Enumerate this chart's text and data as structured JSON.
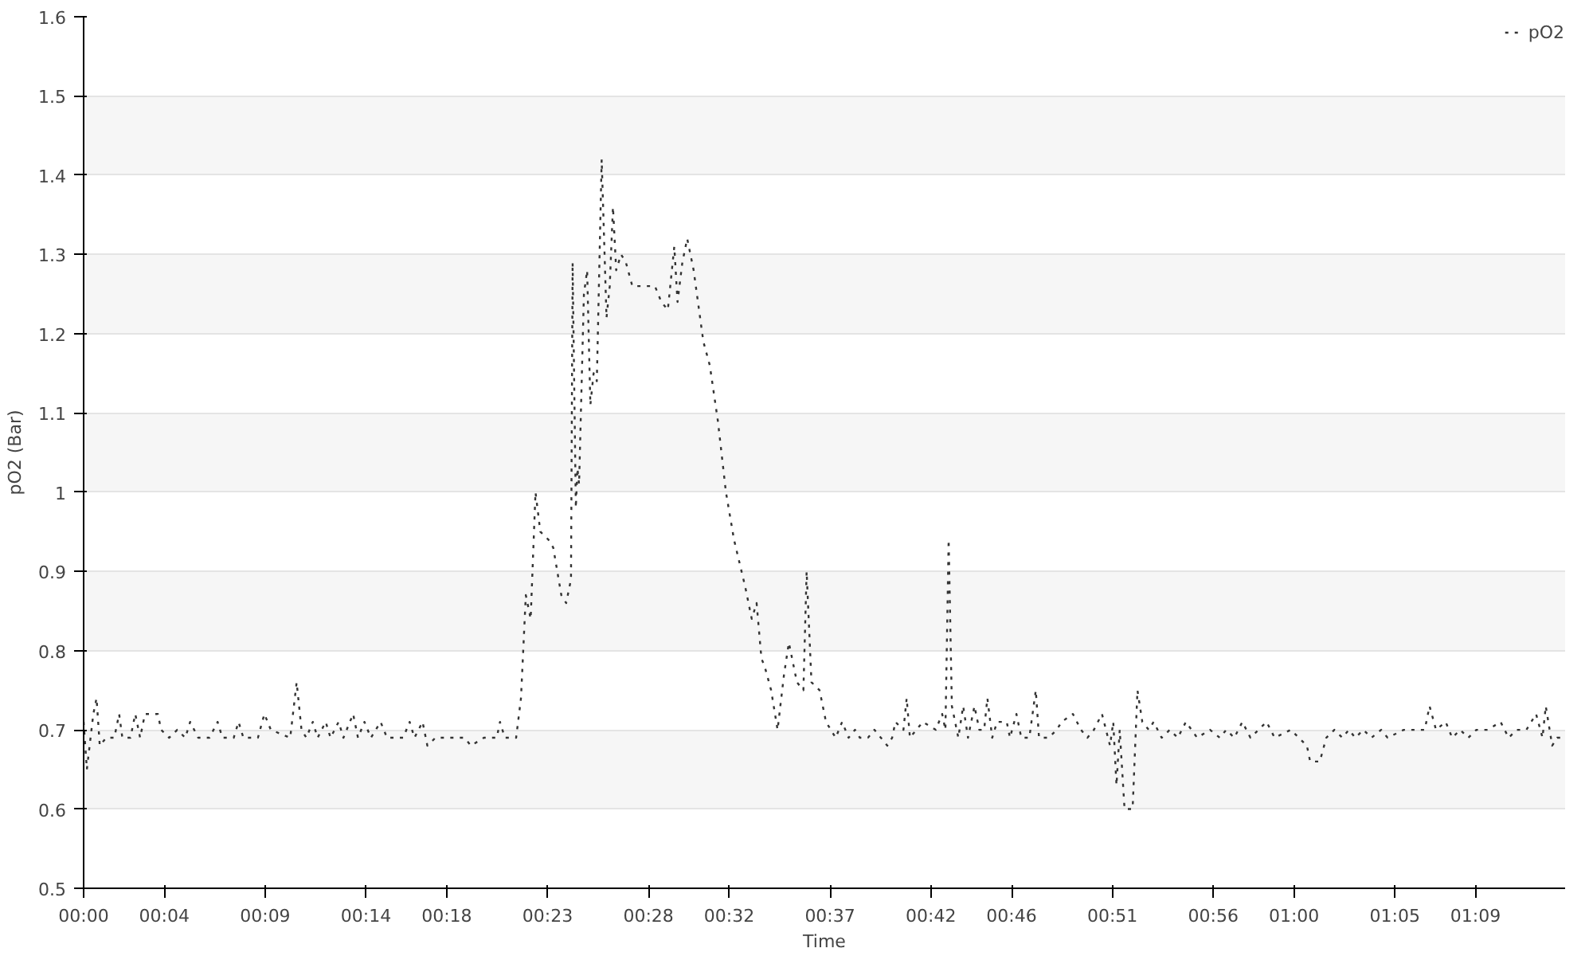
{
  "chart_data": {
    "type": "line",
    "xlabel": "Time",
    "ylabel": "pO2 (Bar)",
    "xlim": [
      0,
      73.44
    ],
    "ylim": [
      0.5,
      1.6
    ],
    "xticks": [
      {
        "value": 0,
        "label": "00:00"
      },
      {
        "value": 4,
        "label": "00:04"
      },
      {
        "value": 9,
        "label": "00:09"
      },
      {
        "value": 14,
        "label": "00:14"
      },
      {
        "value": 18,
        "label": "00:18"
      },
      {
        "value": 23,
        "label": "00:23"
      },
      {
        "value": 28,
        "label": "00:28"
      },
      {
        "value": 32,
        "label": "00:32"
      },
      {
        "value": 37,
        "label": "00:37"
      },
      {
        "value": 42,
        "label": "00:42"
      },
      {
        "value": 46,
        "label": "00:46"
      },
      {
        "value": 51,
        "label": "00:51"
      },
      {
        "value": 56,
        "label": "00:56"
      },
      {
        "value": 60,
        "label": "01:00"
      },
      {
        "value": 65,
        "label": "01:05"
      },
      {
        "value": 69,
        "label": "01:09"
      }
    ],
    "yticks": [
      0.5,
      0.6,
      0.7,
      0.8,
      0.9,
      1,
      1.1,
      1.2,
      1.3,
      1.4,
      1.5,
      1.6
    ],
    "grid": "y",
    "legend": "top right",
    "line_style": "dotted",
    "marker": "none",
    "x": [
      0,
      0.16,
      0.48,
      0.64,
      0.8,
      1.12,
      1.52,
      1.76,
      1.92,
      2.32,
      2.56,
      2.8,
      3.04,
      3.68,
      3.84,
      4.24,
      4.64,
      5.04,
      5.28,
      5.68,
      6.24,
      6.64,
      6.88,
      7.44,
      7.68,
      7.92,
      8.64,
      8.96,
      9.28,
      10.24,
      10.56,
      10.8,
      11.04,
      11.36,
      11.6,
      12.0,
      12.24,
      12.64,
      12.88,
      13.36,
      13.6,
      13.92,
      14.24,
      14.72,
      15.04,
      15.84,
      16.16,
      16.4,
      16.8,
      17.04,
      17.44,
      18.24,
      18.88,
      19.2,
      19.84,
      20.48,
      20.64,
      20.88,
      21.44,
      21.68,
      21.92,
      22.16,
      22.4,
      22.64,
      23.04,
      23.28,
      23.68,
      23.92,
      24.16,
      24.24,
      24.4,
      24.48,
      24.56,
      24.8,
      24.96,
      25.12,
      25.28,
      25.44,
      25.68,
      25.92,
      26.08,
      26.24,
      26.4,
      26.64,
      26.88,
      27.2,
      27.84,
      28.32,
      28.64,
      28.96,
      29.28,
      29.44,
      29.68,
      29.92,
      30.24,
      30.72,
      31.04,
      31.44,
      31.84,
      32.24,
      32.8,
      33.12,
      33.36,
      33.6,
      33.76,
      34.08,
      34.4,
      34.72,
      34.96,
      35.36,
      35.68,
      35.84,
      36.08,
      36.48,
      36.8,
      37.04,
      37.28,
      37.6,
      37.92,
      38.24,
      38.48,
      38.88,
      39.2,
      39.52,
      39.84,
      40.08,
      40.24,
      40.64,
      40.8,
      40.96,
      41.28,
      41.6,
      42.24,
      42.56,
      42.72,
      42.88,
      43.04,
      43.36,
      43.6,
      43.84,
      44.16,
      44.4,
      44.64,
      44.8,
      45.04,
      45.28,
      45.76,
      45.92,
      46.24,
      46.48,
      46.88,
      47.2,
      47.36,
      47.84,
      48.24,
      48.48,
      49.04,
      49.44,
      49.76,
      50.08,
      50.48,
      50.88,
      51.04,
      51.2,
      51.36,
      51.6,
      52.0,
      52.24,
      52.48,
      52.8,
      53.04,
      53.44,
      53.84,
      54.24,
      54.64,
      55.2,
      55.84,
      56.32,
      56.64,
      57.04,
      57.44,
      57.84,
      58.24,
      58.64,
      59.04,
      59.84,
      60.24,
      60.64,
      60.8,
      61.28,
      61.6,
      62.0,
      62.4,
      62.72,
      63.04,
      63.44,
      63.84,
      64.32,
      64.64,
      65.44,
      66.48,
      66.72,
      67.04,
      67.52,
      67.84,
      68.24,
      68.64,
      69.04,
      69.6,
      70.24,
      70.64,
      71.04,
      71.52,
      72.0,
      72.32,
      72.48,
      72.8,
      73.04,
      73.44
    ],
    "series": [
      {
        "name": "pO2",
        "color": "#333333",
        "values": [
          0.71,
          0.65,
          0.72,
          0.74,
          0.68,
          0.69,
          0.69,
          0.72,
          0.69,
          0.69,
          0.72,
          0.69,
          0.72,
          0.72,
          0.7,
          0.69,
          0.7,
          0.69,
          0.71,
          0.69,
          0.69,
          0.71,
          0.69,
          0.69,
          0.71,
          0.69,
          0.69,
          0.72,
          0.7,
          0.69,
          0.76,
          0.7,
          0.69,
          0.71,
          0.69,
          0.71,
          0.69,
          0.71,
          0.69,
          0.72,
          0.69,
          0.71,
          0.69,
          0.71,
          0.69,
          0.69,
          0.71,
          0.69,
          0.71,
          0.68,
          0.69,
          0.69,
          0.69,
          0.68,
          0.69,
          0.69,
          0.71,
          0.69,
          0.69,
          0.74,
          0.87,
          0.84,
          1.0,
          0.95,
          0.94,
          0.93,
          0.87,
          0.86,
          0.89,
          1.29,
          0.98,
          1.03,
          1.01,
          1.25,
          1.28,
          1.11,
          1.15,
          1.14,
          1.42,
          1.22,
          1.26,
          1.36,
          1.28,
          1.3,
          1.29,
          1.26,
          1.26,
          1.26,
          1.24,
          1.23,
          1.31,
          1.24,
          1.29,
          1.32,
          1.28,
          1.19,
          1.16,
          1.09,
          1.0,
          0.94,
          0.88,
          0.84,
          0.86,
          0.79,
          0.78,
          0.75,
          0.7,
          0.77,
          0.81,
          0.76,
          0.75,
          0.9,
          0.76,
          0.75,
          0.71,
          0.7,
          0.69,
          0.71,
          0.69,
          0.7,
          0.69,
          0.69,
          0.7,
          0.69,
          0.68,
          0.69,
          0.71,
          0.7,
          0.74,
          0.69,
          0.7,
          0.71,
          0.7,
          0.72,
          0.7,
          0.94,
          0.73,
          0.69,
          0.73,
          0.69,
          0.73,
          0.7,
          0.7,
          0.74,
          0.69,
          0.71,
          0.71,
          0.69,
          0.72,
          0.69,
          0.69,
          0.75,
          0.69,
          0.69,
          0.7,
          0.71,
          0.72,
          0.7,
          0.69,
          0.7,
          0.72,
          0.68,
          0.71,
          0.63,
          0.7,
          0.6,
          0.6,
          0.75,
          0.71,
          0.7,
          0.71,
          0.69,
          0.7,
          0.69,
          0.71,
          0.69,
          0.7,
          0.69,
          0.7,
          0.69,
          0.71,
          0.69,
          0.7,
          0.71,
          0.69,
          0.7,
          0.69,
          0.68,
          0.66,
          0.66,
          0.69,
          0.7,
          0.69,
          0.7,
          0.69,
          0.7,
          0.69,
          0.7,
          0.69,
          0.7,
          0.7,
          0.73,
          0.7,
          0.71,
          0.69,
          0.7,
          0.69,
          0.7,
          0.7,
          0.71,
          0.69,
          0.7,
          0.7,
          0.72,
          0.69,
          0.73,
          0.68,
          0.69,
          0.69
        ]
      }
    ]
  }
}
